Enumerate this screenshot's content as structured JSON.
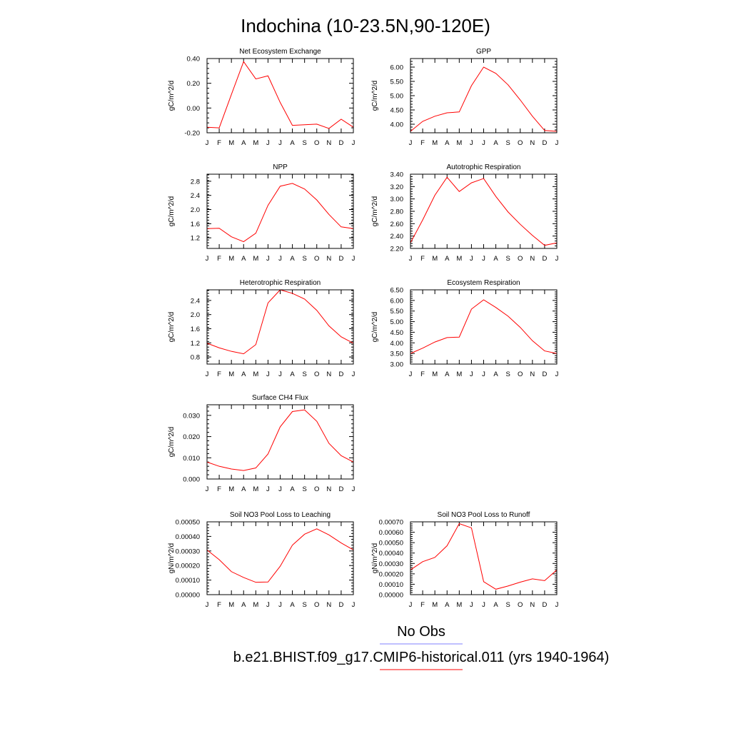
{
  "title": "Indochina (10-23.5N,90-120E)",
  "line_color": "#ff0000",
  "obs_color": "#8080ff",
  "legend": {
    "obs": "No Obs",
    "model": "b.e21.BHIST.f09_g17.CMIP6-historical.011 (yrs 1940-1964)"
  },
  "chart_data": [
    {
      "type": "line",
      "title": "Net Ecosystem Exchange",
      "ylabel": "gC/m^2/d",
      "categories": [
        "J",
        "F",
        "M",
        "A",
        "M",
        "J",
        "J",
        "A",
        "S",
        "O",
        "N",
        "D",
        "J"
      ],
      "ylim": [
        -0.2,
        0.4
      ],
      "yticks": [
        -0.2,
        0.0,
        0.2,
        0.4
      ],
      "ytick_labels": [
        "-0.20",
        "0.00",
        "0.20",
        "0.40"
      ],
      "values": [
        -0.155,
        -0.16,
        0.11,
        0.375,
        0.235,
        0.26,
        0.045,
        -0.14,
        -0.135,
        -0.13,
        -0.165,
        -0.09,
        -0.155
      ]
    },
    {
      "type": "line",
      "title": "GPP",
      "ylabel": "gC/m^2/d",
      "categories": [
        "J",
        "F",
        "M",
        "A",
        "M",
        "J",
        "J",
        "A",
        "S",
        "O",
        "N",
        "D",
        "J"
      ],
      "ylim": [
        3.7,
        6.3
      ],
      "yticks": [
        4.0,
        4.5,
        5.0,
        5.5,
        6.0
      ],
      "ytick_labels": [
        "4.00",
        "4.50",
        "5.00",
        "5.50",
        "6.00"
      ],
      "values": [
        3.75,
        4.1,
        4.28,
        4.4,
        4.43,
        5.35,
        6.0,
        5.78,
        5.38,
        4.85,
        4.28,
        3.78,
        3.75
      ]
    },
    {
      "type": "line",
      "title": "NPP",
      "ylabel": "gC/m^2/d",
      "categories": [
        "J",
        "F",
        "M",
        "A",
        "M",
        "J",
        "J",
        "A",
        "S",
        "O",
        "N",
        "D",
        "J"
      ],
      "ylim": [
        0.9,
        3.0
      ],
      "yticks": [
        1.2,
        1.6,
        2.0,
        2.4,
        2.8
      ],
      "ytick_labels": [
        "1.2",
        "1.6",
        "2.0",
        "2.4",
        "2.8"
      ],
      "values": [
        1.46,
        1.47,
        1.23,
        1.09,
        1.33,
        2.12,
        2.66,
        2.74,
        2.58,
        2.27,
        1.86,
        1.51,
        1.46
      ]
    },
    {
      "type": "line",
      "title": "Autotrophic Respiration",
      "ylabel": "gC/m^2/d",
      "categories": [
        "J",
        "F",
        "M",
        "A",
        "M",
        "J",
        "J",
        "A",
        "S",
        "O",
        "N",
        "D",
        "J"
      ],
      "ylim": [
        2.2,
        3.4
      ],
      "yticks": [
        2.2,
        2.4,
        2.6,
        2.8,
        3.0,
        3.2,
        3.4
      ],
      "ytick_labels": [
        "2.20",
        "2.40",
        "2.60",
        "2.80",
        "3.00",
        "3.20",
        "3.40"
      ],
      "values": [
        2.29,
        2.66,
        3.06,
        3.35,
        3.12,
        3.26,
        3.33,
        3.04,
        2.79,
        2.59,
        2.41,
        2.25,
        2.29
      ]
    },
    {
      "type": "line",
      "title": "Heterotrophic Respiration",
      "ylabel": "gC/m^2/d",
      "categories": [
        "J",
        "F",
        "M",
        "A",
        "M",
        "J",
        "J",
        "A",
        "S",
        "O",
        "N",
        "D",
        "J"
      ],
      "ylim": [
        0.6,
        2.7
      ],
      "yticks": [
        0.8,
        1.2,
        1.6,
        2.0,
        2.4
      ],
      "ytick_labels": [
        "0.8",
        "1.2",
        "1.6",
        "2.0",
        "2.4"
      ],
      "values": [
        1.19,
        1.06,
        0.96,
        0.89,
        1.15,
        2.33,
        2.7,
        2.6,
        2.44,
        2.12,
        1.68,
        1.37,
        1.19
      ]
    },
    {
      "type": "line",
      "title": "Ecosystem Respiration",
      "ylabel": "gC/m^2/d",
      "categories": [
        "J",
        "F",
        "M",
        "A",
        "M",
        "J",
        "J",
        "A",
        "S",
        "O",
        "N",
        "D",
        "J"
      ],
      "ylim": [
        3.0,
        6.5
      ],
      "yticks": [
        3.0,
        3.5,
        4.0,
        4.5,
        5.0,
        5.5,
        6.0,
        6.5
      ],
      "ytick_labels": [
        "3.00",
        "3.50",
        "4.00",
        "4.50",
        "5.00",
        "5.50",
        "6.00",
        "6.50"
      ],
      "values": [
        3.5,
        3.75,
        4.04,
        4.25,
        4.27,
        5.59,
        6.03,
        5.67,
        5.26,
        4.73,
        4.1,
        3.62,
        3.5
      ]
    },
    {
      "type": "line",
      "title": "Surface CH4 Flux",
      "ylabel": "gC/m^2/d",
      "categories": [
        "J",
        "F",
        "M",
        "A",
        "M",
        "J",
        "J",
        "A",
        "S",
        "O",
        "N",
        "D",
        "J"
      ],
      "ylim": [
        0.0,
        0.035
      ],
      "yticks": [
        0.0,
        0.01,
        0.02,
        0.03
      ],
      "ytick_labels": [
        "0.000",
        "0.010",
        "0.020",
        "0.030"
      ],
      "values": [
        0.008,
        0.006,
        0.0047,
        0.004,
        0.0052,
        0.0118,
        0.0246,
        0.0318,
        0.0326,
        0.0272,
        0.0168,
        0.011,
        0.008
      ]
    },
    {
      "type": "line",
      "title": "Soil NO3 Pool Loss to Leaching",
      "ylabel": "gN/m^2/d",
      "categories": [
        "J",
        "F",
        "M",
        "A",
        "M",
        "J",
        "J",
        "A",
        "S",
        "O",
        "N",
        "D",
        "J"
      ],
      "ylim": [
        0.0,
        0.0005
      ],
      "yticks": [
        0.0,
        0.0001,
        0.0002,
        0.0003,
        0.0004,
        0.0005
      ],
      "ytick_labels": [
        "0.00000",
        "0.00010",
        "0.00020",
        "0.00030",
        "0.00040",
        "0.00050"
      ],
      "values": [
        0.000307,
        0.00024,
        0.000158,
        0.000118,
        8.5e-05,
        8.7e-05,
        0.000195,
        0.00034,
        0.000415,
        0.000452,
        0.00041,
        0.000355,
        0.000307
      ]
    },
    {
      "type": "line",
      "title": "Soil NO3 Pool Loss to Runoff",
      "ylabel": "gN/m^2/d",
      "categories": [
        "J",
        "F",
        "M",
        "A",
        "M",
        "J",
        "J",
        "A",
        "S",
        "O",
        "N",
        "D",
        "J"
      ],
      "ylim": [
        0.0,
        0.0007
      ],
      "yticks": [
        0.0,
        0.0001,
        0.0002,
        0.0003,
        0.0004,
        0.0005,
        0.0006,
        0.0007
      ],
      "ytick_labels": [
        "0.00000",
        "0.00010",
        "0.00020",
        "0.00030",
        "0.00040",
        "0.00050",
        "0.00060",
        "0.00070"
      ],
      "values": [
        0.000238,
        0.000317,
        0.000358,
        0.00047,
        0.000683,
        0.000642,
        0.000125,
        5.2e-05,
        8.3e-05,
        0.00012,
        0.000152,
        0.000135,
        0.000238
      ]
    }
  ]
}
